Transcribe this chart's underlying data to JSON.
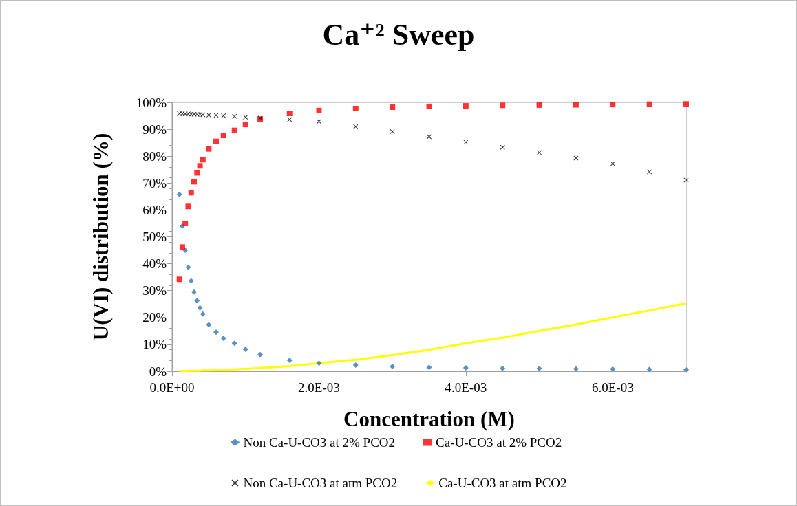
{
  "chart_data": {
    "type": "scatter",
    "title": "Ca⁺² Sweep",
    "xlabel": "Concentration (M)",
    "ylabel": "U(VI) distribution (%)",
    "x": [
      0.0001,
      0.00014,
      0.00018,
      0.00022,
      0.00026,
      0.0003,
      0.00034,
      0.00038,
      0.00042,
      0.0005,
      0.0006,
      0.0007,
      0.00085,
      0.001,
      0.0012,
      0.0016,
      0.002,
      0.0025,
      0.003,
      0.0035,
      0.004,
      0.0045,
      0.005,
      0.0055,
      0.006,
      0.0065,
      0.007
    ],
    "series": [
      {
        "name": "Non Ca-U-CO3 at 2% PCO2",
        "color": "#2e75b6",
        "marker": "diamond",
        "values": [
          65.8,
          54,
          45,
          38.7,
          33.6,
          29.5,
          26.3,
          23.6,
          21.3,
          17.3,
          14.5,
          12.3,
          10.4,
          8.2,
          6.2,
          4.1,
          3.0,
          2.3,
          1.8,
          1.5,
          1.3,
          1.1,
          1.0,
          0.9,
          0.8,
          0.7,
          0.6
        ]
      },
      {
        "name": "Ca-U-CO3 at 2% PCO2",
        "color": "#ff0000",
        "marker": "square",
        "values": [
          34.2,
          46.2,
          55,
          61.3,
          66.4,
          70.5,
          73.8,
          76.4,
          78.7,
          82.7,
          85.5,
          87.7,
          89.6,
          91.8,
          93.8,
          95.9,
          97.0,
          97.7,
          98.2,
          98.5,
          98.7,
          98.9,
          99.0,
          99.1,
          99.2,
          99.3,
          99.4
        ]
      },
      {
        "name": "Non Ca-U-CO3 at atm PCO2",
        "color": "#000000",
        "marker": "cross",
        "values": [
          95.8,
          95.8,
          95.7,
          95.7,
          95.6,
          95.6,
          95.5,
          95.5,
          95.4,
          95.3,
          95.2,
          95.0,
          94.8,
          94.5,
          94.2,
          93.6,
          92.9,
          91.0,
          89.1,
          87.2,
          85.2,
          83.3,
          81.3,
          79.3,
          77.2,
          74.2,
          71.1
        ]
      },
      {
        "name": "Ca-U-CO3 at atm PCO2",
        "color": "#ffff00",
        "type": "line",
        "marker": "none",
        "values": [
          0.1,
          0.1,
          0.1,
          0.1,
          0.2,
          0.2,
          0.2,
          0.2,
          0.3,
          0.3,
          0.4,
          0.5,
          0.7,
          0.9,
          1.2,
          1.9,
          3.0,
          4.3,
          6.0,
          8.0,
          10.4,
          12.5,
          15.0,
          17.4,
          20.1,
          22.6,
          25.3
        ]
      }
    ],
    "xlim": [
      0,
      0.007
    ],
    "xticks": [
      {
        "value": 0,
        "label": "0.0E+00"
      },
      {
        "value": 0.002,
        "label": "2.0E-03"
      },
      {
        "value": 0.004,
        "label": "4.0E-03"
      },
      {
        "value": 0.006,
        "label": "6.0E-03"
      }
    ],
    "ylim": [
      0,
      100
    ],
    "yticks": [
      {
        "value": 0,
        "label": "0%"
      },
      {
        "value": 10,
        "label": "10%"
      },
      {
        "value": 20,
        "label": "20%"
      },
      {
        "value": 30,
        "label": "30%"
      },
      {
        "value": 40,
        "label": "40%"
      },
      {
        "value": 50,
        "label": "50%"
      },
      {
        "value": 60,
        "label": "60%"
      },
      {
        "value": 70,
        "label": "70%"
      },
      {
        "value": 80,
        "label": "80%"
      },
      {
        "value": 90,
        "label": "90%"
      },
      {
        "value": 100,
        "label": "100%"
      }
    ],
    "grid": false,
    "legend": "bottom"
  }
}
